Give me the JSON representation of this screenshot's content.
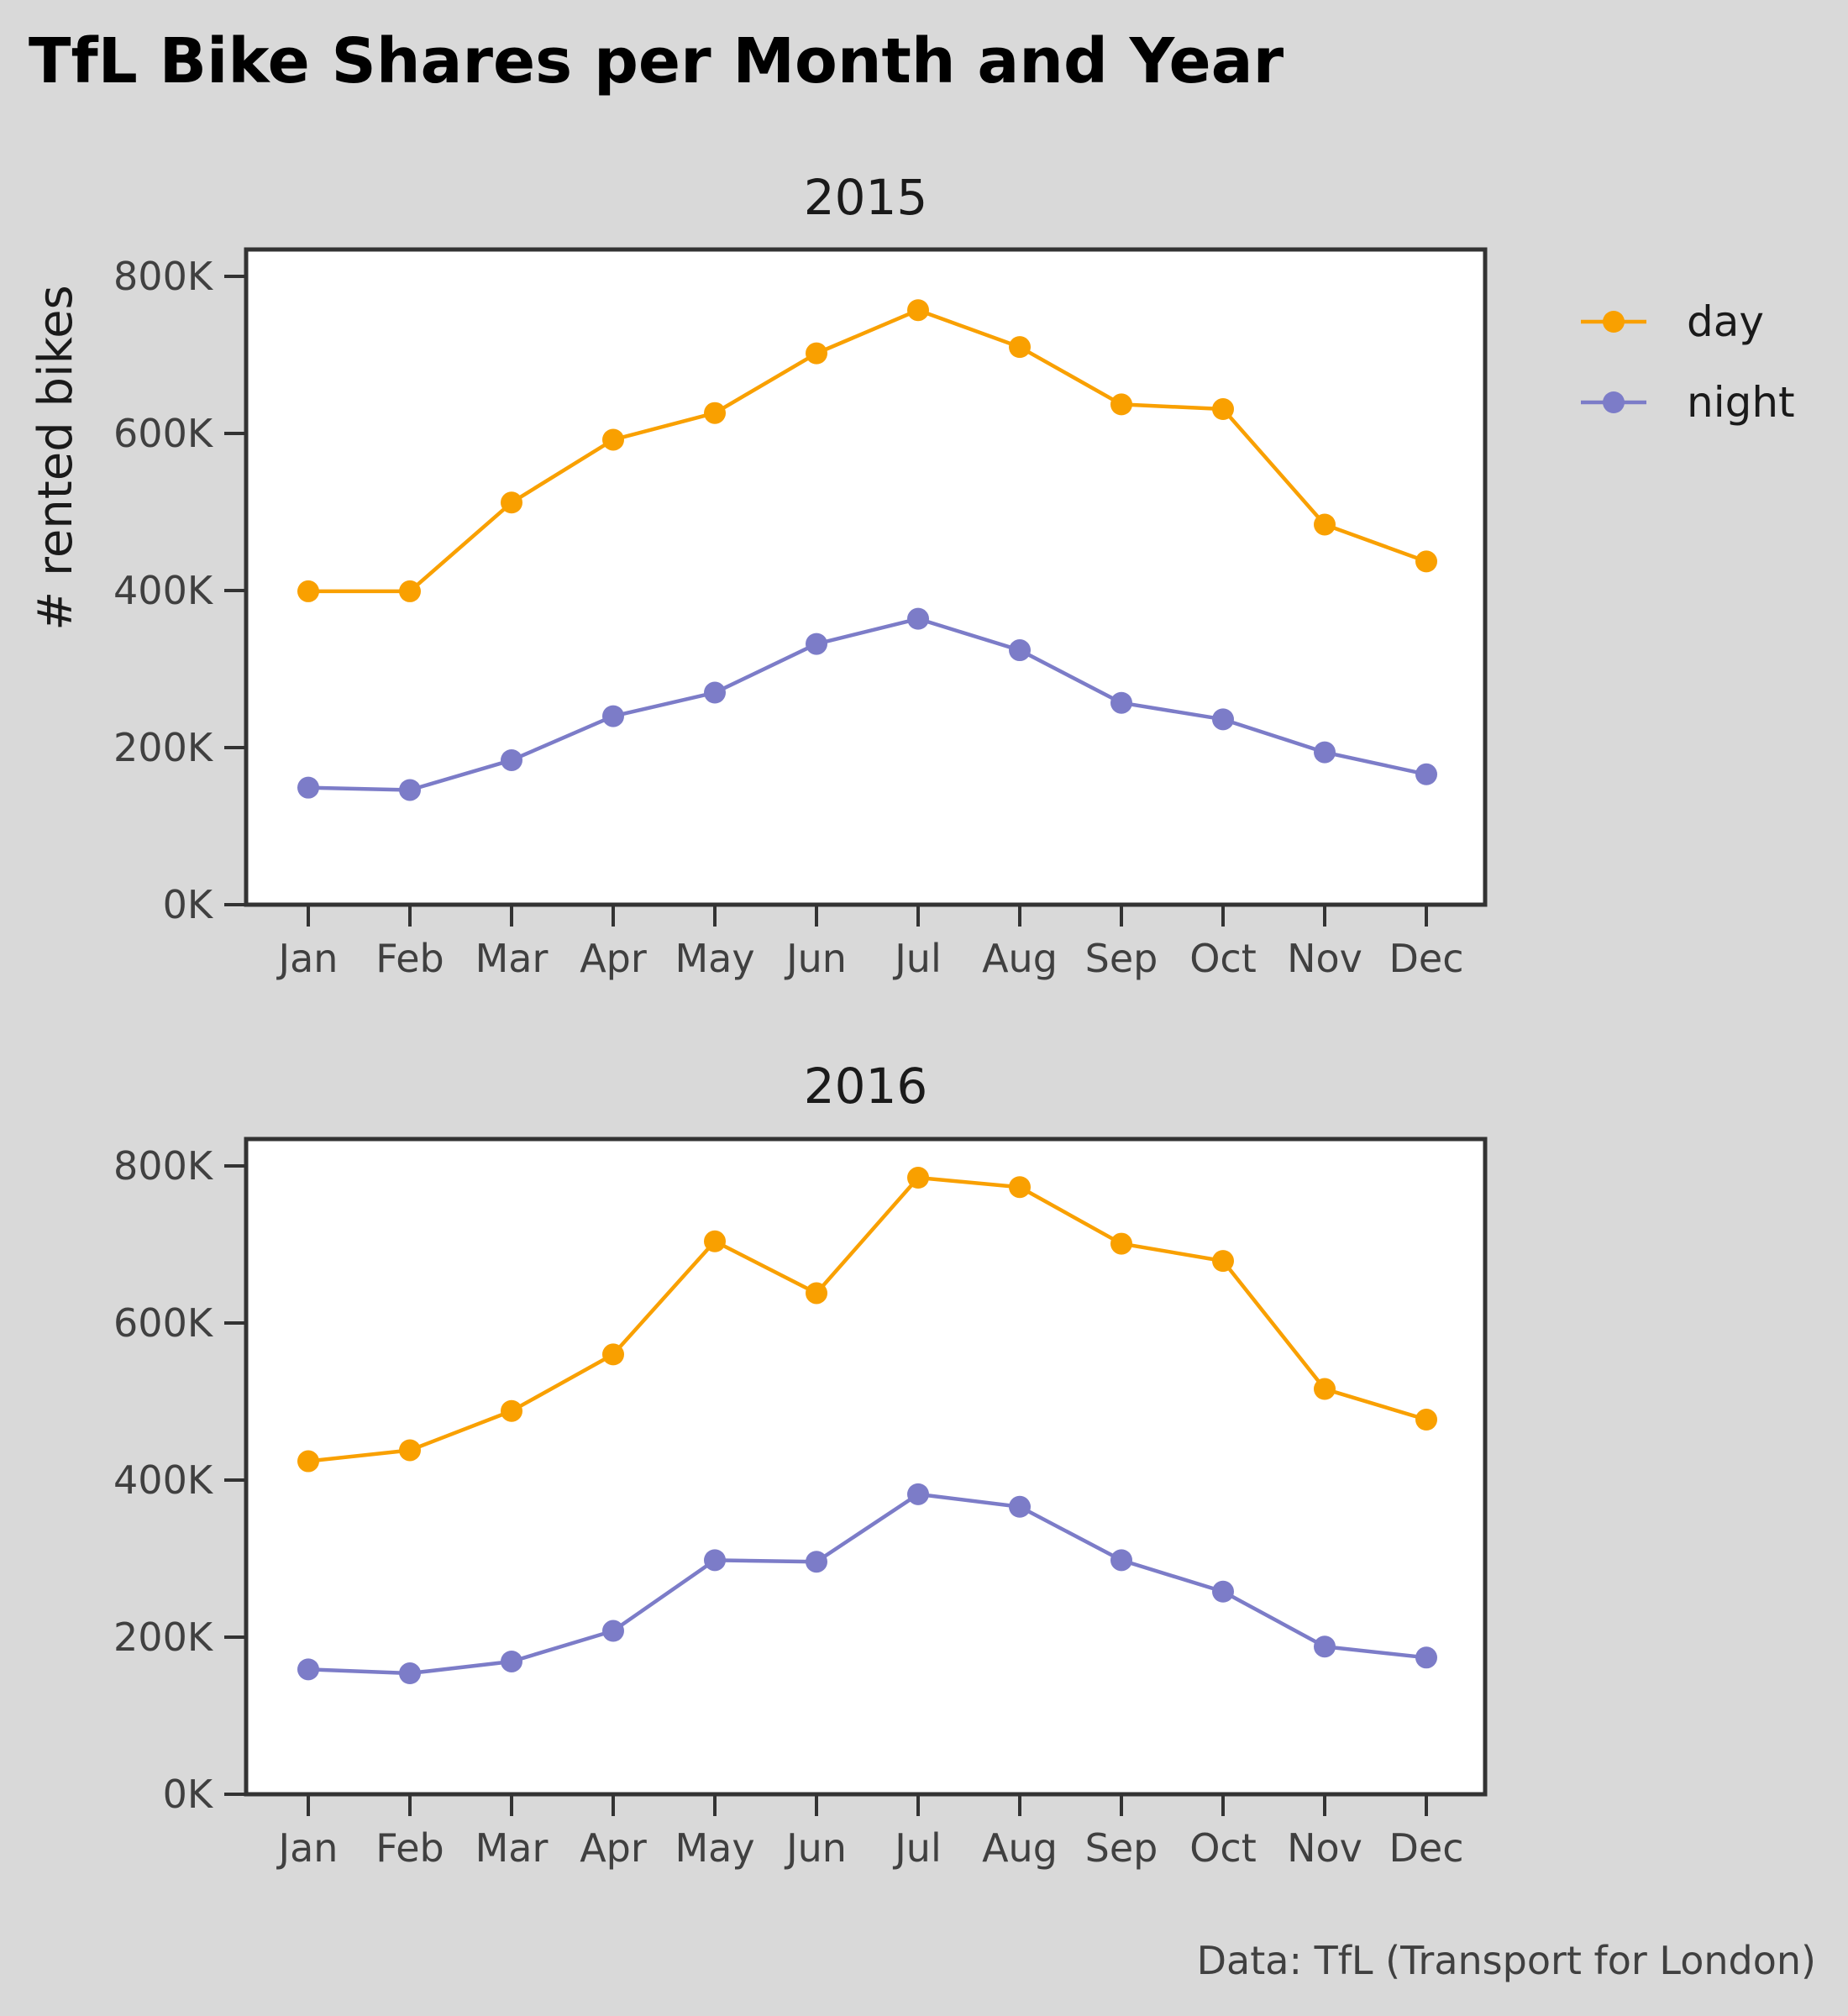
{
  "title": "TfL Bike Shares per Month and Year",
  "caption": "Data: TfL (Transport for London)",
  "ylabel": "# rented bikes",
  "legend": [
    {
      "label": "day",
      "color": "#f9a000"
    },
    {
      "label": "night",
      "color": "#7c7cc8"
    }
  ],
  "chart_data": [
    {
      "type": "line",
      "facet": "2015",
      "categories": [
        "Jan",
        "Feb",
        "Mar",
        "Apr",
        "May",
        "Jun",
        "Jul",
        "Aug",
        "Sep",
        "Oct",
        "Nov",
        "Dec"
      ],
      "ylim": [
        0,
        800000
      ],
      "yticks": [
        0,
        200000,
        400000,
        600000,
        800000
      ],
      "yticklabels": [
        "0K",
        "200K",
        "400K",
        "600K",
        "800K"
      ],
      "grid": false,
      "legend_position": "right",
      "series": [
        {
          "name": "day",
          "color": "#f9a000",
          "values": [
            399000,
            399000,
            512000,
            592000,
            626000,
            702000,
            757000,
            710000,
            637000,
            631000,
            484000,
            437000
          ]
        },
        {
          "name": "night",
          "color": "#7c7cc8",
          "values": [
            149000,
            146000,
            184000,
            240000,
            270000,
            332000,
            364000,
            324000,
            257000,
            236000,
            194000,
            166000
          ]
        }
      ]
    },
    {
      "type": "line",
      "facet": "2016",
      "categories": [
        "Jan",
        "Feb",
        "Mar",
        "Apr",
        "May",
        "Jun",
        "Jul",
        "Aug",
        "Sep",
        "Oct",
        "Nov",
        "Dec"
      ],
      "ylim": [
        0,
        800000
      ],
      "yticks": [
        0,
        200000,
        400000,
        600000,
        800000
      ],
      "yticklabels": [
        "0K",
        "200K",
        "400K",
        "600K",
        "800K"
      ],
      "grid": false,
      "legend_position": "right",
      "series": [
        {
          "name": "day",
          "color": "#f9a000",
          "values": [
            424000,
            438000,
            488000,
            560000,
            704000,
            638000,
            785000,
            773000,
            701000,
            679000,
            516000,
            477000
          ]
        },
        {
          "name": "night",
          "color": "#7c7cc8",
          "values": [
            159000,
            154000,
            169000,
            208000,
            298000,
            296000,
            382000,
            366000,
            298000,
            258000,
            188000,
            174000
          ]
        }
      ]
    }
  ]
}
